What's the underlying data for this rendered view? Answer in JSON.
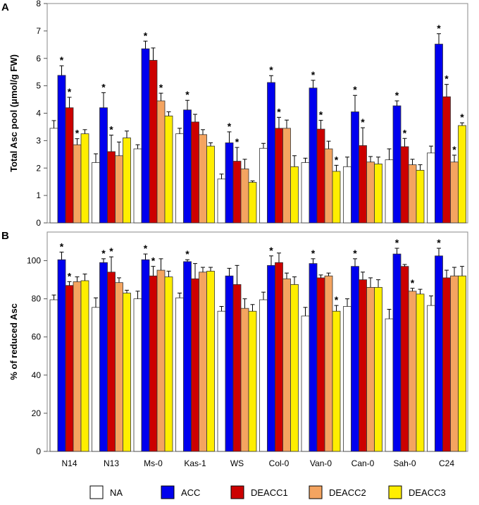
{
  "chart_data": [
    {
      "panel": "A",
      "type": "bar",
      "ylabel": "Total Asc pool (μmol/g FW)",
      "ylim": [
        0,
        8
      ],
      "yticks": [
        0,
        1,
        2,
        3,
        4,
        5,
        6,
        7,
        8
      ],
      "categories": [
        "N14",
        "N13",
        "Ms-0",
        "Kas-1",
        "WS",
        "Col-0",
        "Van-0",
        "Can-0",
        "Sah-0",
        "C24"
      ],
      "series": [
        {
          "name": "NA",
          "color": "#ffffff",
          "values": [
            3.45,
            2.2,
            2.7,
            3.25,
            1.6,
            2.72,
            2.2,
            2.05,
            2.3,
            2.55
          ],
          "errors": [
            0.28,
            0.32,
            0.15,
            0.2,
            0.18,
            0.18,
            0.16,
            0.35,
            0.4,
            0.25
          ],
          "sig": [
            false,
            false,
            false,
            false,
            false,
            false,
            false,
            false,
            false,
            false
          ]
        },
        {
          "name": "ACC",
          "color": "#0000ee",
          "values": [
            5.38,
            4.2,
            6.35,
            4.12,
            2.92,
            5.12,
            4.92,
            4.05,
            4.27,
            6.52
          ],
          "errors": [
            0.35,
            0.55,
            0.28,
            0.35,
            0.4,
            0.25,
            0.28,
            0.6,
            0.18,
            0.38
          ],
          "sig": [
            true,
            true,
            true,
            true,
            true,
            true,
            true,
            true,
            true,
            true
          ]
        },
        {
          "name": "DEACC1",
          "color": "#cc0000",
          "values": [
            4.2,
            2.6,
            5.93,
            3.68,
            2.25,
            3.45,
            3.42,
            2.82,
            2.78,
            4.6
          ],
          "errors": [
            0.38,
            0.6,
            0.45,
            0.28,
            0.5,
            0.4,
            0.32,
            0.65,
            0.3,
            0.45
          ],
          "sig": [
            true,
            true,
            false,
            false,
            true,
            true,
            true,
            true,
            true,
            true
          ]
        },
        {
          "name": "DEACC2",
          "color": "#f4a460",
          "values": [
            2.85,
            2.45,
            4.45,
            3.22,
            1.97,
            3.45,
            2.7,
            2.22,
            2.12,
            2.22
          ],
          "errors": [
            0.22,
            0.5,
            0.28,
            0.18,
            0.35,
            0.3,
            0.28,
            0.2,
            0.2,
            0.25
          ],
          "sig": [
            true,
            false,
            true,
            false,
            false,
            false,
            false,
            false,
            false,
            true
          ]
        },
        {
          "name": "DEACC3",
          "color": "#ffee00",
          "values": [
            3.25,
            3.1,
            3.9,
            2.8,
            1.48,
            2.05,
            1.88,
            2.15,
            1.92,
            3.55
          ],
          "errors": [
            0.15,
            0.25,
            0.15,
            0.12,
            0.05,
            0.4,
            0.22,
            0.25,
            0.2,
            0.1
          ],
          "sig": [
            false,
            false,
            false,
            false,
            false,
            false,
            true,
            false,
            false,
            true
          ]
        }
      ]
    },
    {
      "panel": "B",
      "type": "bar",
      "ylabel": "% of reduced Asc",
      "ylim": [
        0,
        115
      ],
      "yticks": [
        0,
        20,
        40,
        60,
        80,
        100
      ],
      "categories": [
        "N14",
        "N13",
        "Ms-0",
        "Kas-1",
        "WS",
        "Col-0",
        "Van-0",
        "Can-0",
        "Sah-0",
        "C24"
      ],
      "series": [
        {
          "name": "NA",
          "color": "#ffffff",
          "values": [
            79.5,
            75.5,
            80,
            80.5,
            73.5,
            79.5,
            71,
            76,
            69.5,
            76.5
          ],
          "errors": [
            2.5,
            5,
            4,
            2.5,
            2.5,
            4,
            4.5,
            4,
            5,
            5
          ],
          "sig": [
            false,
            false,
            false,
            false,
            false,
            false,
            false,
            false,
            false,
            false
          ]
        },
        {
          "name": "ACC",
          "color": "#0000ee",
          "values": [
            100.5,
            99,
            100.5,
            99.5,
            92,
            97.5,
            98.5,
            97,
            103.5,
            102.5
          ],
          "errors": [
            4,
            2,
            3,
            1,
            4,
            5,
            2.5,
            4,
            3,
            4
          ],
          "sig": [
            true,
            true,
            true,
            true,
            false,
            true,
            true,
            true,
            true,
            true
          ]
        },
        {
          "name": "DEACC1",
          "color": "#cc0000",
          "values": [
            87,
            94,
            92,
            90.5,
            87.5,
            99,
            91,
            90,
            97,
            91
          ],
          "errors": [
            2,
            8,
            5,
            8,
            10,
            5,
            1.5,
            4,
            1,
            4
          ],
          "sig": [
            true,
            true,
            true,
            false,
            false,
            false,
            false,
            false,
            false,
            false
          ]
        },
        {
          "name": "DEACC2",
          "color": "#f4a460",
          "values": [
            89,
            88.5,
            95,
            94,
            75,
            90.5,
            92,
            86,
            84,
            92
          ],
          "errors": [
            2.5,
            2.5,
            6,
            2.5,
            5,
            3,
            1.5,
            5,
            1.5,
            4.5
          ],
          "sig": [
            false,
            false,
            false,
            false,
            false,
            false,
            false,
            false,
            true,
            false
          ]
        },
        {
          "name": "DEACC3",
          "color": "#ffee00",
          "values": [
            89.5,
            83,
            91.5,
            94.5,
            73.5,
            87.5,
            73.5,
            86,
            82.5,
            92
          ],
          "errors": [
            3.5,
            1.5,
            3,
            2,
            3.5,
            4,
            3,
            4,
            2.5,
            5
          ],
          "sig": [
            false,
            false,
            false,
            false,
            false,
            false,
            true,
            false,
            false,
            false
          ]
        }
      ]
    }
  ],
  "legend": [
    {
      "label": "NA",
      "color": "#ffffff"
    },
    {
      "label": "ACC",
      "color": "#0000ee"
    },
    {
      "label": "DEACC1",
      "color": "#cc0000"
    },
    {
      "label": "DEACC2",
      "color": "#f4a460"
    },
    {
      "label": "DEACC3",
      "color": "#ffee00"
    }
  ],
  "significance_marker": "*"
}
